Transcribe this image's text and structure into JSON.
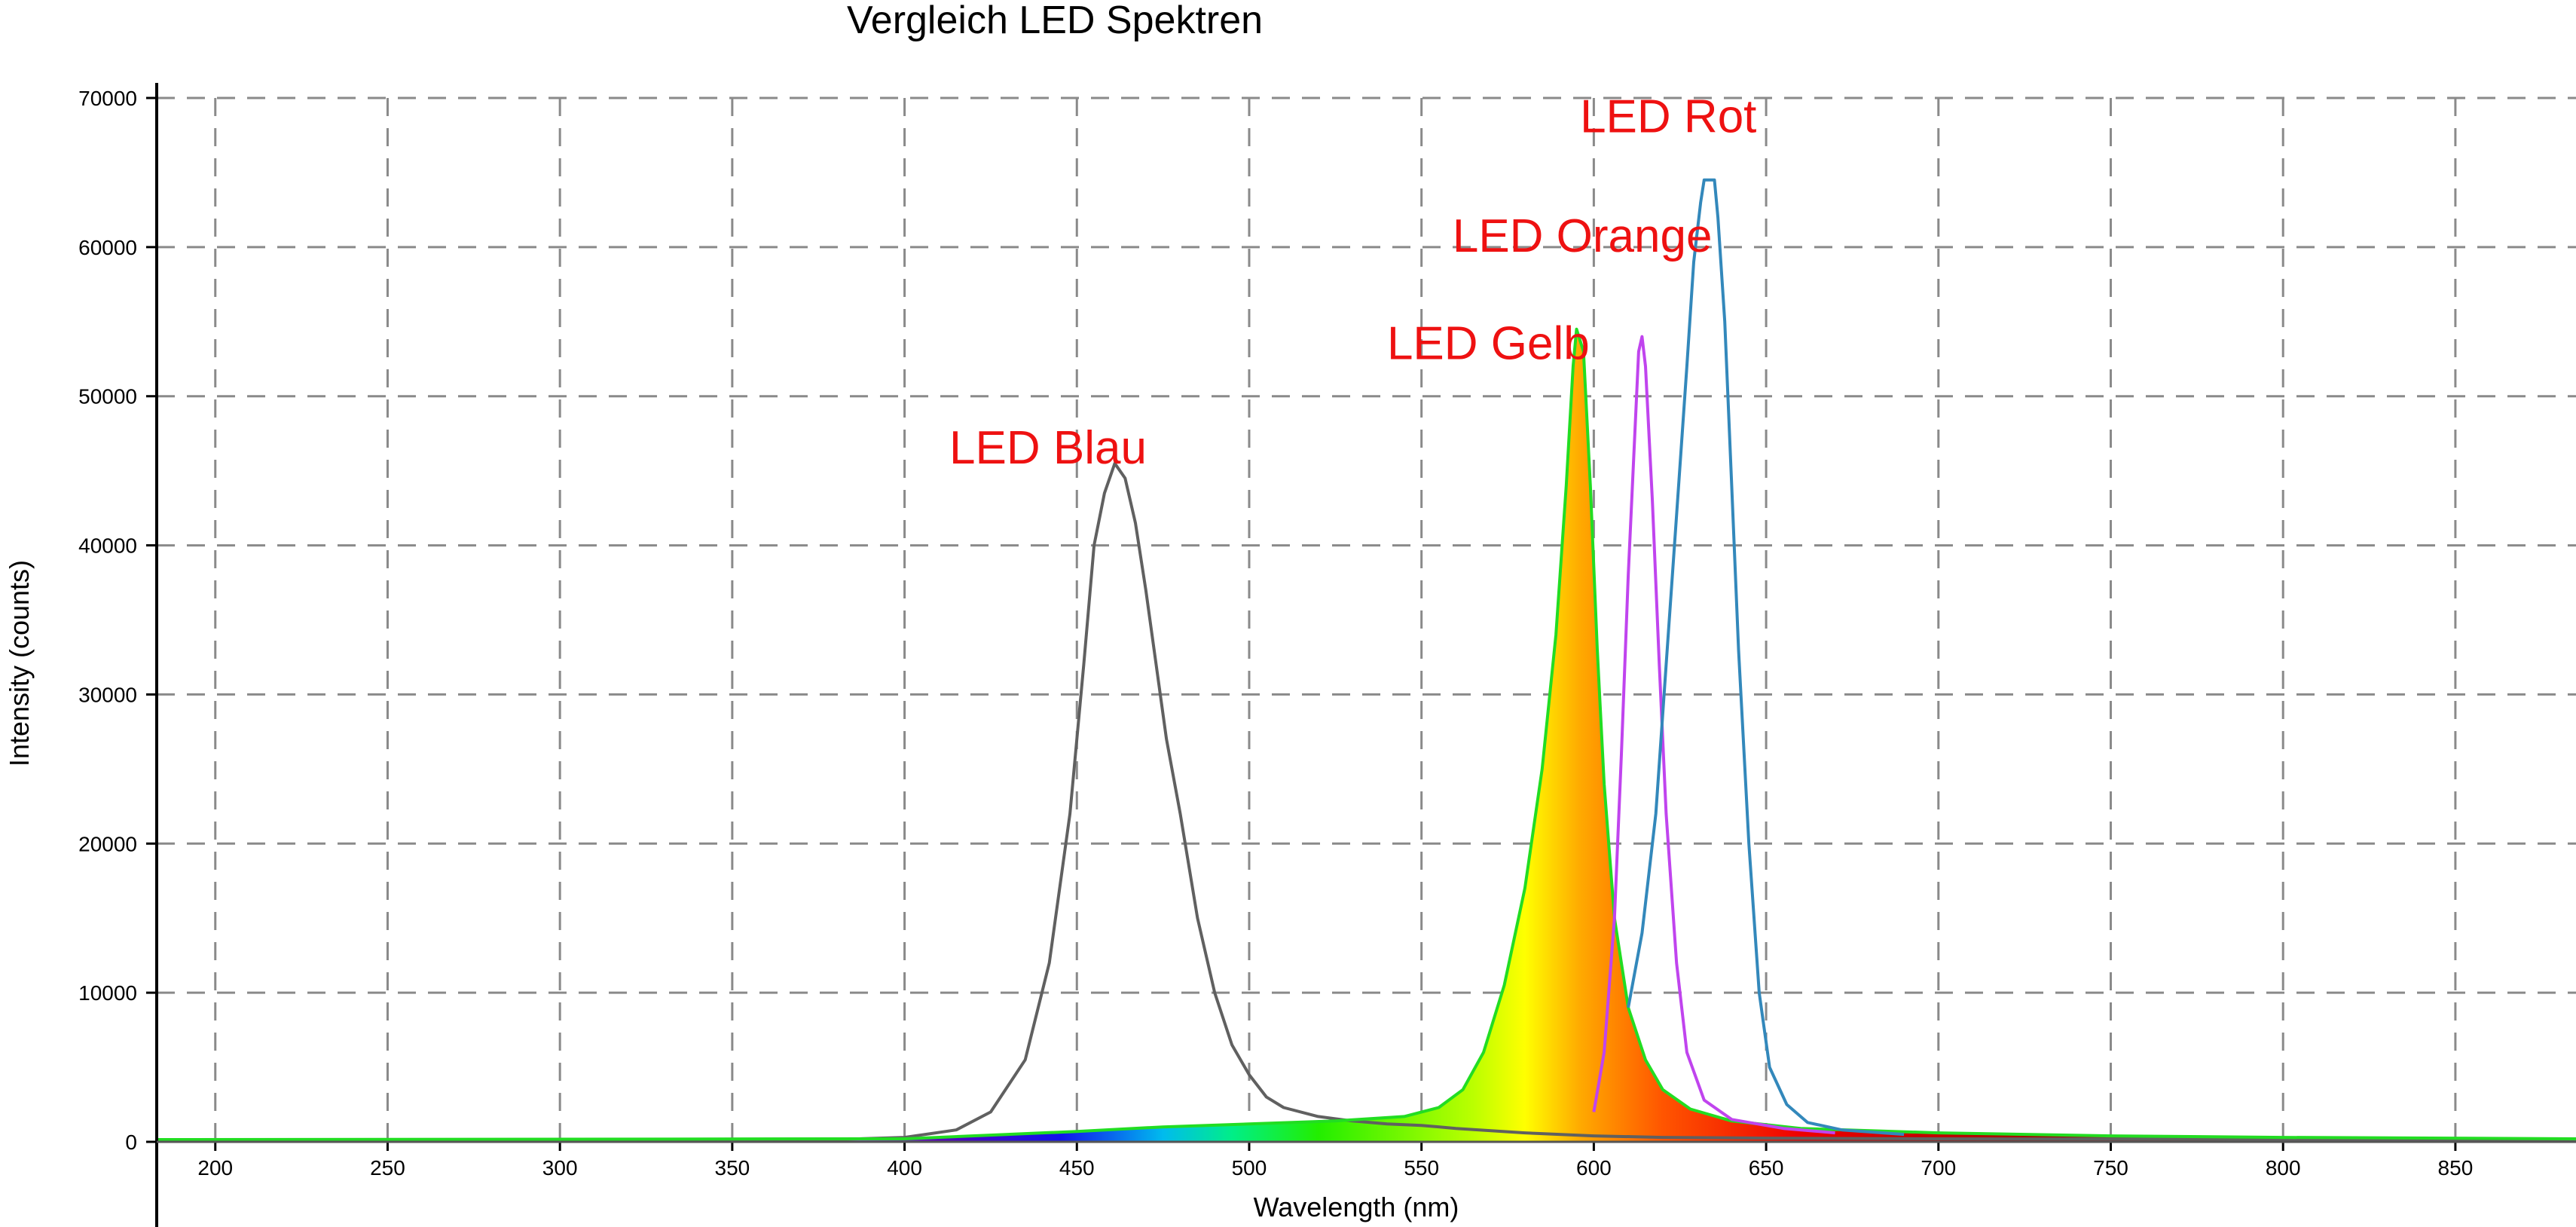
{
  "chart_data": {
    "type": "line",
    "title": "Vergleich LED Spektren",
    "xlabel": "Wavelength (nm)",
    "ylabel": "Intensity (counts)",
    "xlim": [
      183,
      885
    ],
    "ylim": [
      0,
      70000
    ],
    "x_ticks": [
      200,
      250,
      300,
      350,
      400,
      450,
      500,
      550,
      600,
      650,
      700,
      750,
      800,
      850
    ],
    "y_ticks": [
      0,
      10000,
      20000,
      30000,
      40000,
      50000,
      60000,
      70000
    ],
    "grid": true,
    "legend": "none",
    "series": [
      {
        "name": "LED Blau",
        "color": "#606060",
        "points": [
          [
            183,
            150
          ],
          [
            380,
            150
          ],
          [
            400,
            300
          ],
          [
            415,
            800
          ],
          [
            425,
            2000
          ],
          [
            435,
            5500
          ],
          [
            442,
            12000
          ],
          [
            448,
            22000
          ],
          [
            452,
            32000
          ],
          [
            455,
            40000
          ],
          [
            458,
            43500
          ],
          [
            461,
            45500
          ],
          [
            464,
            44500
          ],
          [
            467,
            41500
          ],
          [
            470,
            37000
          ],
          [
            473,
            32000
          ],
          [
            476,
            27000
          ],
          [
            480,
            22000
          ],
          [
            485,
            15000
          ],
          [
            490,
            10000
          ],
          [
            495,
            6500
          ],
          [
            500,
            4500
          ],
          [
            505,
            3000
          ],
          [
            510,
            2300
          ],
          [
            520,
            1700
          ],
          [
            530,
            1400
          ],
          [
            540,
            1200
          ],
          [
            550,
            1100
          ],
          [
            560,
            900
          ],
          [
            580,
            600
          ],
          [
            600,
            400
          ],
          [
            620,
            300
          ],
          [
            650,
            250
          ],
          [
            700,
            200
          ],
          [
            885,
            150
          ]
        ]
      },
      {
        "name": "LED Gelb",
        "color": "#22dd22",
        "points": [
          [
            183,
            150
          ],
          [
            400,
            200
          ],
          [
            430,
            500
          ],
          [
            450,
            700
          ],
          [
            475,
            1000
          ],
          [
            500,
            1200
          ],
          [
            525,
            1400
          ],
          [
            545,
            1700
          ],
          [
            555,
            2300
          ],
          [
            562,
            3500
          ],
          [
            568,
            6000
          ],
          [
            574,
            10500
          ],
          [
            580,
            17000
          ],
          [
            585,
            25000
          ],
          [
            589,
            34000
          ],
          [
            592,
            44000
          ],
          [
            594,
            52000
          ],
          [
            595,
            54500
          ],
          [
            597,
            53000
          ],
          [
            599,
            44000
          ],
          [
            601,
            33000
          ],
          [
            603,
            24000
          ],
          [
            606,
            15000
          ],
          [
            610,
            9000
          ],
          [
            615,
            5500
          ],
          [
            620,
            3500
          ],
          [
            628,
            2200
          ],
          [
            640,
            1400
          ],
          [
            660,
            900
          ],
          [
            700,
            600
          ],
          [
            750,
            400
          ],
          [
            800,
            300
          ],
          [
            885,
            200
          ]
        ]
      },
      {
        "name": "LED Orange",
        "color": "#c044ee",
        "points": [
          [
            600,
            2000
          ],
          [
            603,
            6000
          ],
          [
            606,
            15000
          ],
          [
            608,
            26000
          ],
          [
            610,
            38000
          ],
          [
            612,
            48000
          ],
          [
            613,
            53000
          ],
          [
            614,
            54000
          ],
          [
            615,
            52000
          ],
          [
            617,
            43000
          ],
          [
            619,
            32000
          ],
          [
            621,
            22000
          ],
          [
            624,
            12000
          ],
          [
            627,
            6000
          ],
          [
            632,
            2800
          ],
          [
            640,
            1500
          ],
          [
            655,
            900
          ],
          [
            670,
            600
          ]
        ]
      },
      {
        "name": "LED Rot",
        "color": "#3388bb",
        "points": [
          [
            610,
            9000
          ],
          [
            614,
            14000
          ],
          [
            618,
            22000
          ],
          [
            621,
            32000
          ],
          [
            624,
            42000
          ],
          [
            627,
            52000
          ],
          [
            629,
            59000
          ],
          [
            631,
            63000
          ],
          [
            632,
            64500
          ],
          [
            635,
            64500
          ],
          [
            636,
            62000
          ],
          [
            638,
            55000
          ],
          [
            640,
            44000
          ],
          [
            642,
            33000
          ],
          [
            645,
            20000
          ],
          [
            648,
            10000
          ],
          [
            651,
            5000
          ],
          [
            656,
            2500
          ],
          [
            662,
            1300
          ],
          [
            672,
            800
          ],
          [
            690,
            500
          ]
        ]
      }
    ],
    "annotations": [
      {
        "text": "LED Blau",
        "x": 413,
        "y": 45500
      },
      {
        "text": "LED Gelb",
        "x": 540,
        "y": 52500
      },
      {
        "text": "LED Orange",
        "x": 559,
        "y": 59700
      },
      {
        "text": "LED Rot",
        "x": 596,
        "y": 67700
      }
    ]
  }
}
